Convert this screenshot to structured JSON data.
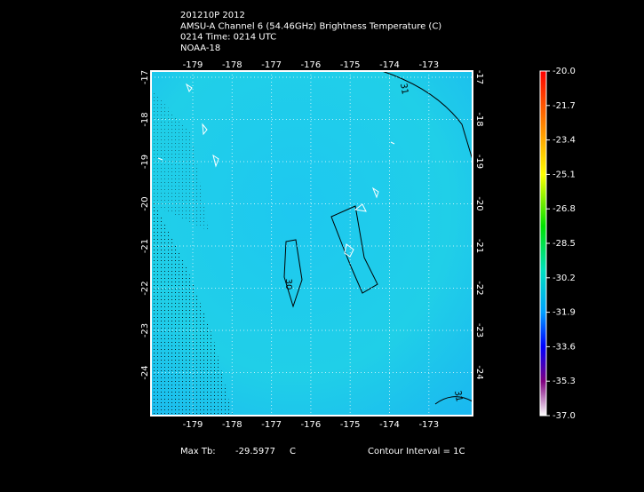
{
  "header": {
    "lines": [
      "201210P 2012",
      "AMSU-A Channel 6 (54.46GHz) Brightness Temperature (C)",
      "0214 Time: 0214 UTC",
      "NOAA-18"
    ]
  },
  "map": {
    "lon_ticks": [
      -179,
      -178,
      -177,
      -176,
      -175,
      -174,
      -173
    ],
    "lat_ticks": [
      -17,
      -18,
      -19,
      -20,
      -21,
      -22,
      -23,
      -24
    ],
    "contour_labels": [
      "31",
      "30",
      "31"
    ]
  },
  "colorbar": {
    "range": [
      -37,
      -20
    ],
    "ticks": [
      {
        "value": -20,
        "label": "-20.0"
      },
      {
        "value": -21.7,
        "label": "-21.7"
      },
      {
        "value": -23.4,
        "label": "-23.4"
      },
      {
        "value": -25.1,
        "label": "-25.1"
      },
      {
        "value": -26.8,
        "label": "-26.8"
      },
      {
        "value": -28.5,
        "label": "-28.5"
      },
      {
        "value": -30.2,
        "label": "-30.2"
      },
      {
        "value": -31.9,
        "label": "-31.9"
      },
      {
        "value": -33.6,
        "label": "-33.6"
      },
      {
        "value": -35.3,
        "label": "-35.3"
      },
      {
        "value": -37,
        "label": "-37.0"
      }
    ]
  },
  "footer": {
    "max_label": "Max Tb:",
    "max_value": "-29.5977",
    "max_unit": "C",
    "interval": "Contour Interval = 1C"
  }
}
